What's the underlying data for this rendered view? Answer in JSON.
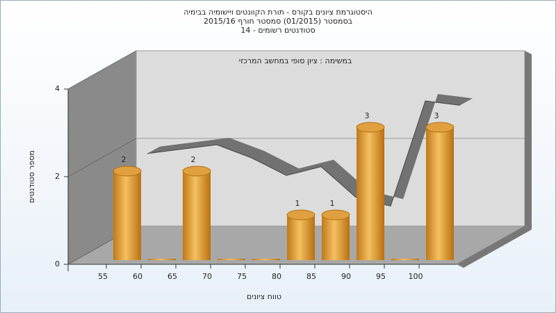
{
  "chart_data": {
    "type": "bar",
    "title": [
      "היסטוגרמת ציונים בקורס - תורת הקוונטים ויישומיה בבימיה",
      "בסמסטר  (01/2015)  סמסטר חורף 2015/16",
      "סטודנטים רשומים - 14"
    ],
    "x_label": "טווח ציונים",
    "y_label": "מספר סטודנטים",
    "categories": [
      "55",
      "60",
      "65",
      "70",
      "75",
      "80",
      "85",
      "90",
      "95",
      "100"
    ],
    "values": [
      2,
      0,
      2,
      0,
      0,
      1,
      1,
      3,
      0,
      3
    ],
    "color": "#e0a040",
    "line": {
      "name": "במשימה : ציון סופי במחשב המרכזי",
      "color": "#666666",
      "values": [
        2.1,
        2.2,
        2.3,
        2.0,
        1.6,
        1.8,
        1.1,
        0.9,
        3.3,
        3.2
      ]
    },
    "ylim": [
      0,
      4
    ],
    "yticks": [
      0,
      2,
      4
    ],
    "grid": true
  }
}
